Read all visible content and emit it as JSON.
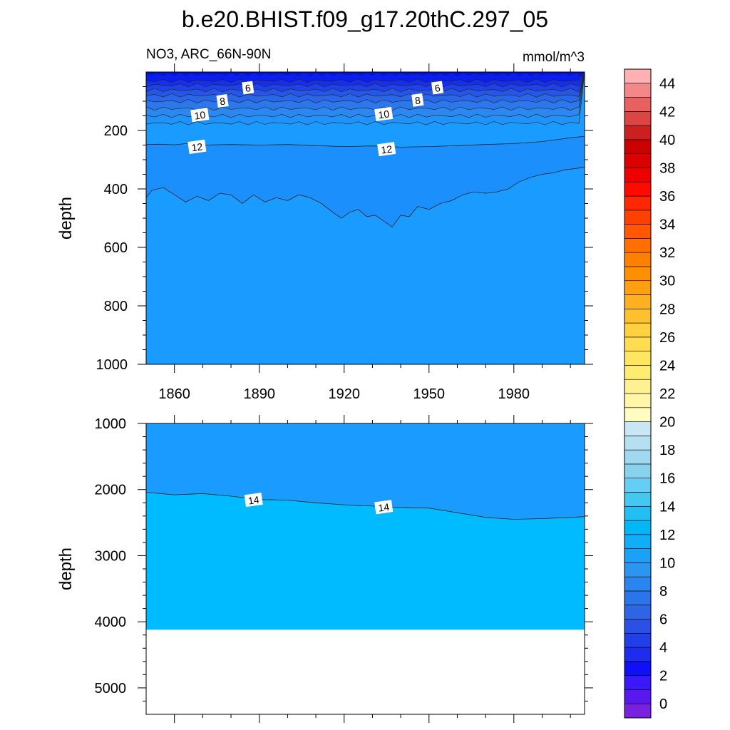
{
  "title": "b.e20.BHIST.f09_g17.20thC.297_05",
  "subtitle_left": "NO3, ARC_66N-90N",
  "subtitle_right": "mmol/m^3",
  "chart_data": [
    {
      "type": "contour",
      "panel": "upper",
      "ylabel": "depth",
      "xlim": [
        1850,
        2005
      ],
      "ylim": [
        1000,
        0
      ],
      "x_ticks": [
        1860,
        1890,
        1920,
        1950,
        1980
      ],
      "y_ticks": [
        200,
        400,
        600,
        800,
        1000
      ],
      "contour_labels": [
        {
          "value": "6",
          "x": 1886,
          "y": 55
        },
        {
          "value": "8",
          "x": 1877,
          "y": 100
        },
        {
          "value": "10",
          "x": 1869,
          "y": 148
        },
        {
          "value": "12",
          "x": 1868,
          "y": 257
        },
        {
          "value": "6",
          "x": 1953,
          "y": 55
        },
        {
          "value": "8",
          "x": 1946,
          "y": 97
        },
        {
          "value": "10",
          "x": 1934,
          "y": 145
        },
        {
          "value": "12",
          "x": 1935,
          "y": 265
        }
      ],
      "isoline_12": {
        "x": [
          1850,
          1855,
          1860,
          1865,
          1870,
          1880,
          1890,
          1900,
          1910,
          1920,
          1930,
          1940,
          1950,
          1960,
          1970,
          1980,
          1990,
          2000,
          2005
        ],
        "depth": [
          248,
          247,
          249,
          244,
          250,
          248,
          250,
          248,
          252,
          255,
          253,
          257,
          255,
          252,
          248,
          245,
          238,
          225,
          220
        ]
      },
      "isoline_13": {
        "x": [
          1850,
          1852,
          1856,
          1860,
          1864,
          1868,
          1872,
          1876,
          1880,
          1884,
          1888,
          1892,
          1896,
          1900,
          1904,
          1908,
          1912,
          1916,
          1919,
          1922,
          1925,
          1928,
          1931,
          1934,
          1937,
          1940,
          1943,
          1946,
          1950,
          1954,
          1958,
          1962,
          1966,
          1970,
          1974,
          1978,
          1982,
          1986,
          1990,
          1994,
          1998,
          2002,
          2005
        ],
        "depth": [
          430,
          405,
          395,
          420,
          445,
          425,
          440,
          415,
          420,
          450,
          420,
          445,
          430,
          440,
          420,
          430,
          450,
          480,
          500,
          480,
          470,
          495,
          490,
          510,
          530,
          490,
          495,
          460,
          470,
          450,
          440,
          420,
          410,
          415,
          410,
          400,
          375,
          360,
          350,
          345,
          335,
          330,
          325
        ]
      }
    },
    {
      "type": "contour",
      "panel": "lower",
      "ylabel": "depth",
      "xlim": [
        1850,
        2005
      ],
      "ylim": [
        5400,
        1000
      ],
      "y_ticks": [
        1000,
        2000,
        3000,
        4000,
        5000
      ],
      "contour_labels": [
        {
          "value": "14",
          "x": 1888,
          "y": 2160
        },
        {
          "value": "14",
          "x": 1934,
          "y": 2270
        }
      ],
      "isoline_14": {
        "x": [
          1850,
          1855,
          1860,
          1870,
          1880,
          1890,
          1900,
          1910,
          1920,
          1930,
          1940,
          1950,
          1960,
          1970,
          1980,
          1990,
          2000,
          2005
        ],
        "depth": [
          2040,
          2060,
          2080,
          2060,
          2100,
          2150,
          2160,
          2200,
          2230,
          2250,
          2270,
          2280,
          2350,
          2420,
          2450,
          2440,
          2420,
          2410
        ]
      },
      "ocean_floor_depth": 4120
    }
  ],
  "colorbar": {
    "labels": [
      "0",
      "2",
      "4",
      "6",
      "8",
      "10",
      "12",
      "14",
      "16",
      "18",
      "20",
      "22",
      "24",
      "26",
      "28",
      "30",
      "32",
      "34",
      "36",
      "38",
      "40",
      "42",
      "44"
    ],
    "colors": [
      "#7a20e0",
      "#5a18f0",
      "#3a18f8",
      "#0f0ff8",
      "#1e2cf0",
      "#223ee8",
      "#2a50e6",
      "#2e64e6",
      "#2c74ea",
      "#2a86ee",
      "#2a96f2",
      "#1aa2f8",
      "#10aef8",
      "#00b8f8",
      "#22c0f2",
      "#44c8f2",
      "#66cef4",
      "#88d2ee",
      "#a0d8f0",
      "#b4e0f2",
      "#c8e6f4",
      "#fffdc0",
      "#fff6a8",
      "#fff090",
      "#ffec70",
      "#ffe660",
      "#ffdc50",
      "#ffd040",
      "#ffc030",
      "#ffb020",
      "#ffa010",
      "#ff9000",
      "#ff8000",
      "#ff7000",
      "#ff5800",
      "#ff4000",
      "#ff2800",
      "#ff0a00",
      "#ee0000",
      "#dd0000",
      "#cc0000",
      "#cc2020",
      "#dd4444",
      "#e86060",
      "#f48888",
      "#ffb0b0"
    ]
  },
  "fills": {
    "upper_layers": [
      "#0a1ef0",
      "#1630ea",
      "#1f42e8",
      "#2556e8",
      "#2866ea",
      "#2a78ec",
      "#2c88f0",
      "#1f93fa"
    ],
    "deep_upper": "#1a9bff",
    "lower_upper": "#1a9bff",
    "lower_deep": "#00bbff"
  }
}
